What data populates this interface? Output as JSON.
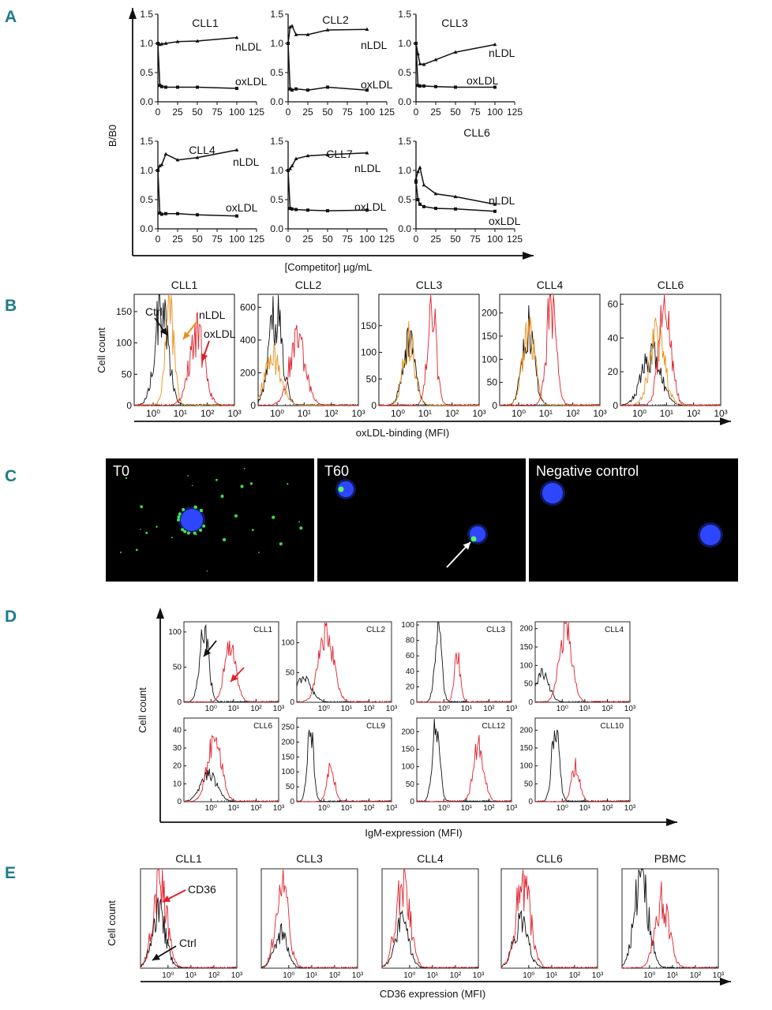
{
  "figure": {
    "panel_letters": [
      "A",
      "B",
      "C",
      "D",
      "E"
    ]
  },
  "chart_data": [
    {
      "panel": "A",
      "type": "line",
      "xlabel": "[Competitor] µg/mL",
      "ylabel": "B/B0",
      "x_ticks": [
        "0",
        "25",
        "50",
        "75",
        "100",
        "125"
      ],
      "y_ticks": [
        "0.0",
        "0.5",
        "1.0",
        "1.5"
      ],
      "xlim": [
        0,
        125
      ],
      "ylim": [
        0,
        1.5
      ],
      "subplots": [
        {
          "title": "CLL1",
          "series": [
            {
              "name": "nLDL",
              "x": [
                0,
                2.5,
                5,
                10,
                25,
                50,
                100
              ],
              "y": [
                1.0,
                0.98,
                0.99,
                1.0,
                1.03,
                1.04,
                1.1
              ]
            },
            {
              "name": "oxLDL",
              "x": [
                0,
                2.5,
                5,
                10,
                25,
                50,
                100
              ],
              "y": [
                1.0,
                0.28,
                0.26,
                0.25,
                0.25,
                0.25,
                0.23
              ]
            }
          ]
        },
        {
          "title": "CLL2",
          "series": [
            {
              "name": "nLDL",
              "x": [
                0,
                2.5,
                5,
                10,
                25,
                50,
                100
              ],
              "y": [
                1.0,
                1.28,
                1.3,
                1.15,
                1.15,
                1.23,
                1.24
              ]
            },
            {
              "name": "oxLDL",
              "x": [
                0,
                2.5,
                5,
                10,
                25,
                50,
                100
              ],
              "y": [
                1.0,
                0.22,
                0.2,
                0.22,
                0.2,
                0.25,
                0.2
              ]
            }
          ]
        },
        {
          "title": "CLL3",
          "series": [
            {
              "name": "nLDL",
              "x": [
                0,
                2.5,
                5,
                10,
                25,
                50,
                100
              ],
              "y": [
                1.0,
                0.82,
                0.65,
                0.64,
                0.72,
                0.85,
                0.98
              ]
            },
            {
              "name": "oxLDL",
              "x": [
                0,
                2.5,
                5,
                10,
                25,
                50,
                100
              ],
              "y": [
                1.0,
                0.28,
                0.27,
                0.27,
                0.26,
                0.25,
                0.25
              ]
            }
          ]
        },
        {
          "title": "CLL4",
          "series": [
            {
              "name": "nLDL",
              "x": [
                0,
                2.5,
                5,
                10,
                25,
                50,
                100
              ],
              "y": [
                1.0,
                1.08,
                1.1,
                1.28,
                1.18,
                1.22,
                1.35
              ]
            },
            {
              "name": "oxLDL",
              "x": [
                0,
                2.5,
                5,
                10,
                25,
                50,
                100
              ],
              "y": [
                1.0,
                0.27,
                0.25,
                0.26,
                0.26,
                0.24,
                0.22
              ]
            }
          ]
        },
        {
          "title": "CLL7",
          "series": [
            {
              "name": "nLDL",
              "x": [
                0,
                2.5,
                5,
                10,
                25,
                50,
                100
              ],
              "y": [
                1.0,
                1.03,
                1.08,
                1.2,
                1.25,
                1.27,
                1.3
              ]
            },
            {
              "name": "oxLDL",
              "x": [
                0,
                2.5,
                5,
                10,
                25,
                50,
                100
              ],
              "y": [
                1.0,
                0.35,
                0.34,
                0.33,
                0.32,
                0.31,
                0.32
              ]
            }
          ]
        },
        {
          "title": "CLL6",
          "series": [
            {
              "name": "nLDL",
              "x": [
                0,
                2.5,
                5,
                10,
                25,
                50,
                100
              ],
              "y": [
                0.85,
                0.98,
                1.05,
                0.75,
                0.6,
                0.55,
                0.42
              ]
            },
            {
              "name": "oxLDL",
              "x": [
                0,
                2.5,
                5,
                10,
                25,
                50,
                100
              ],
              "y": [
                0.8,
                0.5,
                0.42,
                0.38,
                0.35,
                0.34,
                0.3
              ]
            }
          ]
        }
      ]
    },
    {
      "panel": "B",
      "type": "histogram",
      "xlabel": "oxLDL-binding (MFI)",
      "ylabel": "Cell count",
      "x_ticks": [
        "10⁰",
        "10¹",
        "10²",
        "10³"
      ],
      "series_colors": {
        "Ctrl": "#111111",
        "nLDL": "#e8901c",
        "oxLDL": "#e0202a"
      },
      "subplots": [
        {
          "title": "CLL1",
          "y_ticks": [
            "0",
            "50",
            "100",
            "150"
          ],
          "ymax": 170,
          "annotations": [
            "Ctrl",
            "nLDL",
            "oxLDL"
          ],
          "series": [
            {
              "name": "Ctrl",
              "peak_log10": 0.3,
              "sigma": 0.25,
              "height": 150
            },
            {
              "name": "nLDL",
              "peak_log10": 0.6,
              "sigma": 0.16,
              "height": 160
            },
            {
              "name": "oxLDL",
              "peak_log10": 1.6,
              "sigma": 0.28,
              "height": 115
            }
          ]
        },
        {
          "title": "CLL2",
          "y_ticks": [
            "0",
            "200",
            "400",
            "600"
          ],
          "ymax": 650,
          "annotations": [],
          "series": [
            {
              "name": "Ctrl",
              "peak_log10": -0.05,
              "sigma": 0.25,
              "height": 560
            },
            {
              "name": "nLDL",
              "peak_log10": -0.15,
              "sigma": 0.3,
              "height": 280
            },
            {
              "name": "oxLDL",
              "peak_log10": 0.75,
              "sigma": 0.3,
              "height": 380
            }
          ]
        },
        {
          "title": "CLL3",
          "y_ticks": [
            "0",
            "50",
            "100",
            "150"
          ],
          "ymax": 200,
          "annotations": [],
          "series": [
            {
              "name": "Ctrl",
              "peak_log10": 0.4,
              "sigma": 0.22,
              "height": 118
            },
            {
              "name": "nLDL",
              "peak_log10": 0.42,
              "sigma": 0.22,
              "height": 120
            },
            {
              "name": "oxLDL",
              "peak_log10": 1.25,
              "sigma": 0.16,
              "height": 185
            }
          ]
        },
        {
          "title": "CLL4",
          "y_ticks": [
            "0",
            "50",
            "100",
            "150",
            "200"
          ],
          "ymax": 230,
          "annotations": [],
          "series": [
            {
              "name": "Ctrl",
              "peak_log10": 0.35,
              "sigma": 0.22,
              "height": 165
            },
            {
              "name": "nLDL",
              "peak_log10": 0.37,
              "sigma": 0.22,
              "height": 168
            },
            {
              "name": "oxLDL",
              "peak_log10": 1.2,
              "sigma": 0.18,
              "height": 215
            }
          ]
        },
        {
          "title": "CLL6",
          "y_ticks": [
            "0",
            "20",
            "40",
            "60"
          ],
          "ymax": 63,
          "annotations": [],
          "series": [
            {
              "name": "Ctrl",
              "peak_log10": 0.45,
              "sigma": 0.35,
              "height": 30
            },
            {
              "name": "nLDL",
              "peak_log10": 0.65,
              "sigma": 0.28,
              "height": 40
            },
            {
              "name": "oxLDL",
              "peak_log10": 0.95,
              "sigma": 0.22,
              "height": 58
            }
          ]
        }
      ]
    },
    {
      "panel": "D",
      "type": "histogram",
      "xlabel": "IgM-expression (MFI)",
      "ylabel": "Cell count",
      "x_ticks": [
        "10⁰",
        "10¹",
        "10²",
        "10³"
      ],
      "subplots": [
        {
          "title": "CLL1",
          "y_ticks": [
            "0",
            "50",
            "100"
          ],
          "ymax": 110,
          "arrows": true,
          "series": [
            {
              "name": "Ctrl",
              "peak_log10": -0.3,
              "sigma": 0.2,
              "height": 100
            },
            {
              "name": "IgM",
              "peak_log10": 0.85,
              "sigma": 0.25,
              "height": 80
            }
          ]
        },
        {
          "title": "CLL2",
          "y_ticks": [
            "0",
            "50",
            "100"
          ],
          "ymax": 130,
          "arrows": false,
          "series": [
            {
              "name": "Ctrl",
              "peak_log10": -0.9,
              "sigma": 0.35,
              "height": 40
            },
            {
              "name": "IgM",
              "peak_log10": 0.1,
              "sigma": 0.32,
              "height": 118
            }
          ]
        },
        {
          "title": "CLL3",
          "y_ticks": [
            "0",
            "20",
            "40",
            "60",
            "80",
            "100"
          ],
          "ymax": 100,
          "arrows": false,
          "series": [
            {
              "name": "Ctrl",
              "peak_log10": -0.25,
              "sigma": 0.15,
              "height": 97
            },
            {
              "name": "IgM",
              "peak_log10": 0.6,
              "sigma": 0.13,
              "height": 62
            }
          ]
        },
        {
          "title": "CLL4",
          "y_ticks": [
            "0",
            "50",
            "100",
            "150",
            "200"
          ],
          "ymax": 210,
          "arrows": false,
          "series": [
            {
              "name": "Ctrl",
              "peak_log10": -0.9,
              "sigma": 0.3,
              "height": 75
            },
            {
              "name": "IgM",
              "peak_log10": 0.15,
              "sigma": 0.27,
              "height": 200
            }
          ]
        },
        {
          "title": "CLL6",
          "y_ticks": [
            "0",
            "10",
            "20",
            "30",
            "40"
          ],
          "ymax": 45,
          "arrows": false,
          "series": [
            {
              "name": "Ctrl",
              "peak_log10": -0.1,
              "sigma": 0.35,
              "height": 16
            },
            {
              "name": "IgM",
              "peak_log10": 0.15,
              "sigma": 0.3,
              "height": 36
            }
          ]
        },
        {
          "title": "CLL9",
          "y_ticks": [
            "0",
            "50",
            "100",
            "150",
            "200",
            "250"
          ],
          "ymax": 270,
          "arrows": false,
          "series": [
            {
              "name": "Ctrl",
              "peak_log10": -0.6,
              "sigma": 0.14,
              "height": 240
            },
            {
              "name": "IgM",
              "peak_log10": 0.3,
              "sigma": 0.17,
              "height": 115
            }
          ]
        },
        {
          "title": "CLL12",
          "y_ticks": [
            "0",
            "50",
            "100",
            "150",
            "200"
          ],
          "ymax": 230,
          "arrows": false,
          "series": [
            {
              "name": "Ctrl",
              "peak_log10": -0.35,
              "sigma": 0.16,
              "height": 220
            },
            {
              "name": "IgM",
              "peak_log10": 1.55,
              "sigma": 0.23,
              "height": 160
            }
          ]
        },
        {
          "title": "CLL10",
          "y_ticks": [
            "0",
            "50",
            "100",
            "150",
            "200"
          ],
          "ymax": 225,
          "arrows": false,
          "series": [
            {
              "name": "Ctrl",
              "peak_log10": -0.3,
              "sigma": 0.16,
              "height": 215
            },
            {
              "name": "IgM",
              "peak_log10": 0.6,
              "sigma": 0.18,
              "height": 100
            }
          ]
        }
      ]
    },
    {
      "panel": "E",
      "type": "histogram",
      "xlabel": "CD36 expression (MFI)",
      "ylabel": "Cell count",
      "x_ticks": [
        "10⁰",
        "10¹",
        "10²",
        "10³"
      ],
      "subplots": [
        {
          "title": "CLL1",
          "annotations": [
            "CD36",
            "Ctrl"
          ],
          "series": [
            {
              "name": "Ctrl",
              "peak_log10": -0.4,
              "sigma": 0.3,
              "height": 0.55
            },
            {
              "name": "CD36",
              "peak_log10": -0.35,
              "sigma": 0.3,
              "height": 0.92
            }
          ]
        },
        {
          "title": "CLL3",
          "annotations": [],
          "series": [
            {
              "name": "Ctrl",
              "peak_log10": -0.35,
              "sigma": 0.28,
              "height": 0.35
            },
            {
              "name": "CD36",
              "peak_log10": -0.3,
              "sigma": 0.28,
              "height": 0.82
            }
          ]
        },
        {
          "title": "CLL4",
          "annotations": [],
          "series": [
            {
              "name": "Ctrl",
              "peak_log10": -0.35,
              "sigma": 0.3,
              "height": 0.45
            },
            {
              "name": "CD36",
              "peak_log10": -0.3,
              "sigma": 0.3,
              "height": 0.9
            }
          ]
        },
        {
          "title": "CLL6",
          "annotations": [],
          "series": [
            {
              "name": "Ctrl",
              "peak_log10": -0.35,
              "sigma": 0.32,
              "height": 0.45
            },
            {
              "name": "CD36",
              "peak_log10": -0.25,
              "sigma": 0.32,
              "height": 0.9
            }
          ]
        },
        {
          "title": "PBMC",
          "annotations": [],
          "series": [
            {
              "name": "Ctrl",
              "peak_log10": -0.35,
              "sigma": 0.3,
              "height": 0.95
            },
            {
              "name": "CD36",
              "peak_log10": 0.55,
              "sigma": 0.3,
              "height": 0.72
            }
          ]
        }
      ]
    }
  ],
  "micrographs": [
    {
      "label": "T0"
    },
    {
      "label": "T60"
    },
    {
      "label": "Negative control"
    }
  ]
}
